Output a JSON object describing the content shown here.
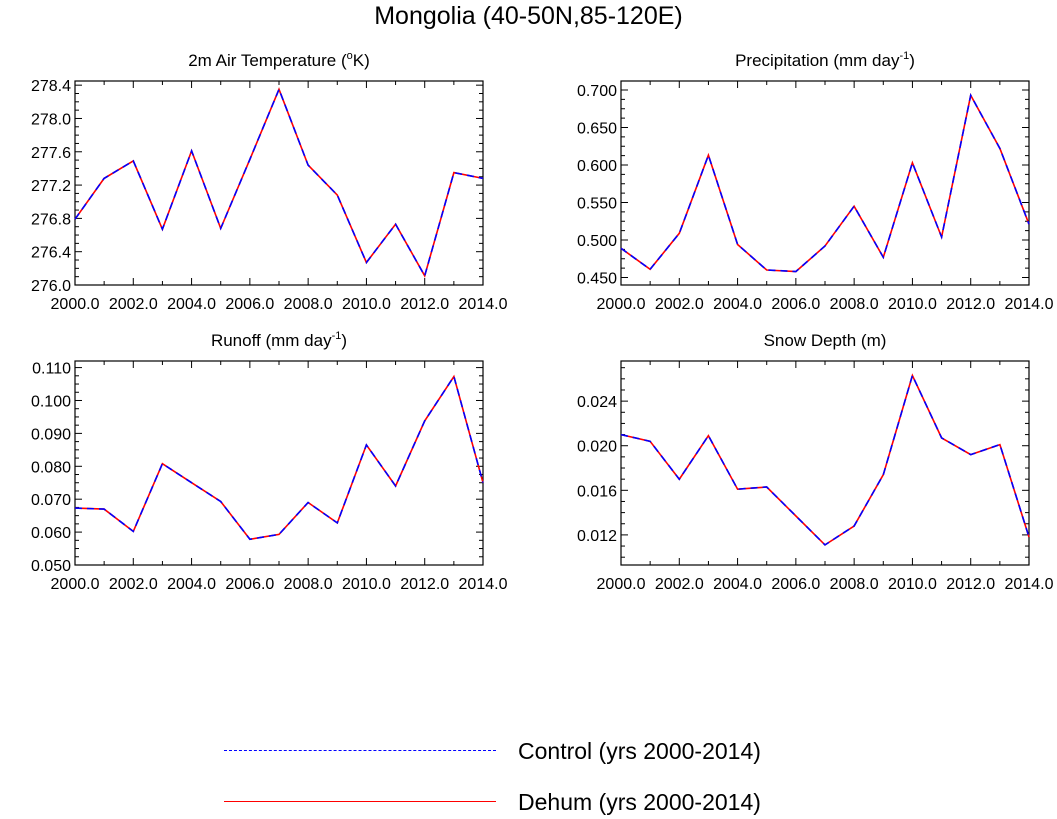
{
  "title": "Mongolia (40-50N,85-120E)",
  "legend": {
    "control": "Control (yrs 2000-2014)",
    "dehum": "Dehum (yrs 2000-2014)"
  },
  "colors": {
    "control": "#0000ff",
    "dehum": "#ff0000"
  },
  "chart_data": [
    {
      "type": "line",
      "title_main": "2m Air Temperature (",
      "title_sup": "o",
      "title_end": "K)",
      "x": [
        2000,
        2001,
        2002,
        2003,
        2004,
        2005,
        2006,
        2007,
        2008,
        2009,
        2010,
        2011,
        2012,
        2013,
        2014
      ],
      "xlim": [
        2000,
        2014
      ],
      "xticks": [
        "2000.0",
        "2002.0",
        "2004.0",
        "2006.0",
        "2008.0",
        "2010.0",
        "2012.0",
        "2014.0"
      ],
      "ylim": [
        276.0,
        278.45
      ],
      "yticks": [
        "276.0",
        "276.4",
        "276.8",
        "277.2",
        "277.6",
        "278.0",
        "278.4"
      ],
      "series": [
        {
          "name": "Control",
          "values": [
            276.79,
            277.28,
            277.49,
            276.67,
            277.61,
            276.68,
            277.51,
            278.35,
            277.44,
            277.08,
            276.27,
            276.73,
            276.11,
            277.35,
            277.28
          ]
        },
        {
          "name": "Dehum",
          "values": [
            276.79,
            277.28,
            277.49,
            276.67,
            277.61,
            276.68,
            277.51,
            278.35,
            277.44,
            277.08,
            276.27,
            276.73,
            276.11,
            277.35,
            277.28
          ]
        }
      ]
    },
    {
      "type": "line",
      "title_main": "Precipitation (mm day",
      "title_sup": "-1",
      "title_end": ")",
      "x": [
        2000,
        2001,
        2002,
        2003,
        2004,
        2005,
        2006,
        2007,
        2008,
        2009,
        2010,
        2011,
        2012,
        2013,
        2014
      ],
      "xlim": [
        2000,
        2014
      ],
      "xticks": [
        "2000.0",
        "2002.0",
        "2004.0",
        "2006.0",
        "2008.0",
        "2010.0",
        "2012.0",
        "2014.0"
      ],
      "ylim": [
        0.44,
        0.712
      ],
      "yticks": [
        "0.450",
        "0.500",
        "0.550",
        "0.600",
        "0.650",
        "0.700"
      ],
      "series": [
        {
          "name": "Control",
          "values": [
            0.489,
            0.461,
            0.509,
            0.613,
            0.494,
            0.46,
            0.458,
            0.492,
            0.545,
            0.477,
            0.603,
            0.504,
            0.693,
            0.622,
            0.521
          ]
        },
        {
          "name": "Dehum",
          "values": [
            0.489,
            0.461,
            0.509,
            0.613,
            0.494,
            0.46,
            0.458,
            0.492,
            0.545,
            0.477,
            0.603,
            0.504,
            0.693,
            0.622,
            0.521
          ]
        }
      ]
    },
    {
      "type": "line",
      "title_main": "Runoff (mm day",
      "title_sup": "-1",
      "title_end": ")",
      "x": [
        2000,
        2001,
        2002,
        2003,
        2004,
        2005,
        2006,
        2007,
        2008,
        2009,
        2010,
        2011,
        2012,
        2013,
        2014
      ],
      "xlim": [
        2000,
        2014
      ],
      "xticks": [
        "2000.0",
        "2002.0",
        "2004.0",
        "2006.0",
        "2008.0",
        "2010.0",
        "2012.0",
        "2014.0"
      ],
      "ylim": [
        0.05,
        0.112
      ],
      "yticks": [
        "0.050",
        "0.060",
        "0.070",
        "0.080",
        "0.090",
        "0.100",
        "0.110"
      ],
      "series": [
        {
          "name": "Control",
          "values": [
            0.0673,
            0.067,
            0.0602,
            0.0808,
            0.075,
            0.0693,
            0.0578,
            0.0593,
            0.069,
            0.0628,
            0.0865,
            0.074,
            0.0938,
            0.1073,
            0.075
          ]
        },
        {
          "name": "Dehum",
          "values": [
            0.0673,
            0.067,
            0.0602,
            0.0808,
            0.075,
            0.0693,
            0.0578,
            0.0593,
            0.069,
            0.0628,
            0.0865,
            0.074,
            0.0938,
            0.1073,
            0.075
          ]
        }
      ]
    },
    {
      "type": "line",
      "title_main": "Snow Depth (m)",
      "title_sup": "",
      "title_end": "",
      "x": [
        2000,
        2001,
        2002,
        2003,
        2004,
        2005,
        2006,
        2007,
        2008,
        2009,
        2010,
        2011,
        2012,
        2013,
        2014
      ],
      "xlim": [
        2000,
        2014
      ],
      "xticks": [
        "2000.0",
        "2002.0",
        "2004.0",
        "2006.0",
        "2008.0",
        "2010.0",
        "2012.0",
        "2014.0"
      ],
      "ylim": [
        0.0093,
        0.0276
      ],
      "yticks": [
        "0.012",
        "0.016",
        "0.020",
        "0.024"
      ],
      "series": [
        {
          "name": "Control",
          "values": [
            0.021,
            0.0204,
            0.017,
            0.0209,
            0.0161,
            0.0163,
            0.0137,
            0.0111,
            0.0128,
            0.0174,
            0.0263,
            0.0207,
            0.0192,
            0.0201,
            0.0118
          ]
        },
        {
          "name": "Dehum",
          "values": [
            0.021,
            0.0204,
            0.017,
            0.0209,
            0.0161,
            0.0163,
            0.0137,
            0.0111,
            0.0128,
            0.0174,
            0.0263,
            0.0207,
            0.0192,
            0.0201,
            0.0118
          ]
        }
      ]
    }
  ]
}
